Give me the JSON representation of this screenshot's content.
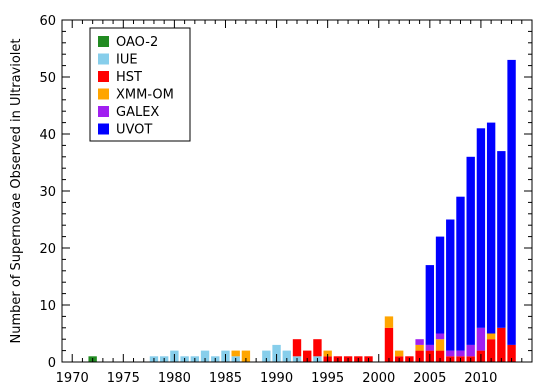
{
  "chart_data": {
    "type": "bar",
    "stacked": true,
    "title": "",
    "xlabel": "",
    "ylabel": "Number of Supernovae Observed in Ultraviolet",
    "xlim": [
      1969,
      2015
    ],
    "ylim": [
      0,
      60
    ],
    "x_ticks": [
      1970,
      1975,
      1980,
      1985,
      1990,
      1995,
      2000,
      2005,
      2010
    ],
    "y_ticks": [
      0,
      10,
      20,
      30,
      40,
      50,
      60
    ],
    "legend_position": "top-left",
    "grid": false,
    "x": [
      1970,
      1971,
      1972,
      1973,
      1974,
      1975,
      1976,
      1977,
      1978,
      1979,
      1980,
      1981,
      1982,
      1983,
      1984,
      1985,
      1986,
      1987,
      1988,
      1989,
      1990,
      1991,
      1992,
      1993,
      1994,
      1995,
      1996,
      1997,
      1998,
      1999,
      2000,
      2001,
      2002,
      2003,
      2004,
      2005,
      2006,
      2007,
      2008,
      2009,
      2010,
      2011,
      2012,
      2013
    ],
    "series": [
      {
        "name": "OAO-2",
        "color": "#228b22",
        "values": [
          0,
          0,
          1,
          0,
          0,
          0,
          0,
          0,
          0,
          0,
          0,
          0,
          0,
          0,
          0,
          0,
          0,
          0,
          0,
          0,
          0,
          0,
          0,
          0,
          0,
          0,
          0,
          0,
          0,
          0,
          0,
          0,
          0,
          0,
          0,
          0,
          0,
          0,
          0,
          0,
          0,
          0,
          0,
          0
        ]
      },
      {
        "name": "IUE",
        "color": "#87ceeb",
        "values": [
          0,
          0,
          0,
          0,
          0,
          0,
          0,
          0,
          1,
          1,
          2,
          1,
          1,
          2,
          1,
          2,
          1,
          0,
          0,
          2,
          3,
          2,
          1,
          0,
          1,
          0,
          0,
          0,
          0,
          0,
          0,
          0,
          0,
          0,
          0,
          0,
          0,
          0,
          0,
          0,
          0,
          0,
          0,
          0
        ]
      },
      {
        "name": "HST",
        "color": "#ff0000",
        "values": [
          0,
          0,
          0,
          0,
          0,
          0,
          0,
          0,
          0,
          0,
          0,
          0,
          0,
          0,
          0,
          0,
          0,
          0,
          0,
          0,
          0,
          0,
          3,
          2,
          3,
          1,
          1,
          1,
          1,
          1,
          0,
          6,
          1,
          1,
          2,
          2,
          2,
          1,
          1,
          1,
          2,
          4,
          6,
          3
        ]
      },
      {
        "name": "XMM-OM",
        "color": "#ffa500",
        "values": [
          0,
          0,
          0,
          0,
          0,
          0,
          0,
          0,
          0,
          0,
          0,
          0,
          0,
          0,
          0,
          0,
          1,
          2,
          0,
          0,
          0,
          0,
          0,
          0,
          0,
          1,
          0,
          0,
          0,
          0,
          0,
          2,
          1,
          0,
          1,
          0,
          2,
          0,
          0,
          0,
          0,
          1,
          0,
          0
        ]
      },
      {
        "name": "GALEX",
        "color": "#a020f0",
        "values": [
          0,
          0,
          0,
          0,
          0,
          0,
          0,
          0,
          0,
          0,
          0,
          0,
          0,
          0,
          0,
          0,
          0,
          0,
          0,
          0,
          0,
          0,
          0,
          0,
          0,
          0,
          0,
          0,
          0,
          0,
          0,
          0,
          0,
          0,
          1,
          1,
          1,
          1,
          1,
          2,
          4,
          0,
          0,
          0
        ]
      },
      {
        "name": "UVOT",
        "color": "#0000ff",
        "values": [
          0,
          0,
          0,
          0,
          0,
          0,
          0,
          0,
          0,
          0,
          0,
          0,
          0,
          0,
          0,
          0,
          0,
          0,
          0,
          0,
          0,
          0,
          0,
          0,
          0,
          0,
          0,
          0,
          0,
          0,
          0,
          0,
          0,
          0,
          0,
          14,
          17,
          23,
          27,
          33,
          35,
          37,
          31,
          50
        ]
      }
    ]
  }
}
